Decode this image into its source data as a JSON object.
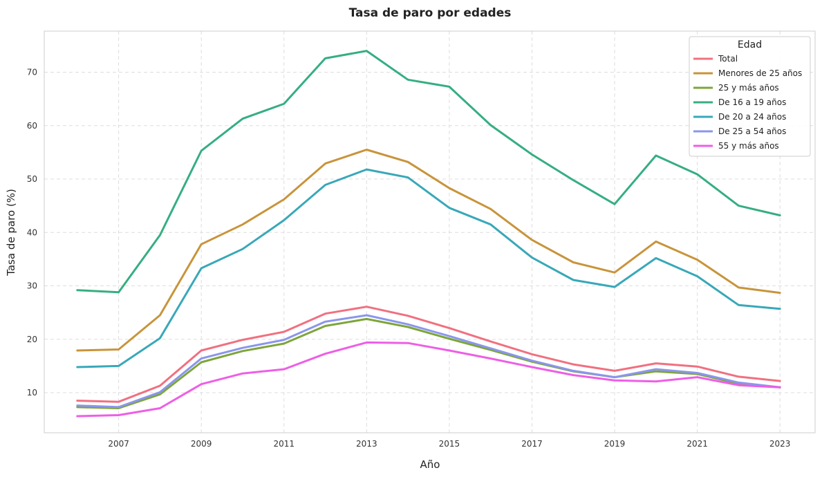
{
  "chart_data": {
    "type": "line",
    "title": "Tasa de paro por edades",
    "xlabel": "Año",
    "ylabel": "Tasa de paro (%)",
    "x": [
      2006,
      2007,
      2008,
      2009,
      2010,
      2011,
      2012,
      2013,
      2014,
      2015,
      2016,
      2017,
      2018,
      2019,
      2020,
      2021,
      2022,
      2023
    ],
    "xticks": [
      2007,
      2009,
      2011,
      2013,
      2015,
      2017,
      2019,
      2021,
      2023
    ],
    "yticks": [
      10,
      20,
      30,
      40,
      50,
      60,
      70
    ],
    "xlim": [
      2005.2,
      2023.85
    ],
    "ylim": [
      2.5,
      77.7
    ],
    "grid": true,
    "legend": {
      "title": "Edad",
      "position": "top-right"
    },
    "series": [
      {
        "name": "Total",
        "color": "#f07080",
        "values": [
          8.5,
          8.3,
          11.3,
          17.9,
          19.9,
          21.4,
          24.8,
          26.1,
          24.4,
          22.1,
          19.6,
          17.2,
          15.3,
          14.1,
          15.5,
          14.9,
          13.0,
          12.2
        ]
      },
      {
        "name": "Menores de 25 años",
        "color": "#c8943a",
        "values": [
          17.9,
          18.1,
          24.5,
          37.8,
          41.5,
          46.2,
          52.9,
          55.5,
          53.2,
          48.3,
          44.4,
          38.6,
          34.4,
          32.5,
          38.3,
          34.9,
          29.7,
          28.7
        ]
      },
      {
        "name": "25 y más años",
        "color": "#7ea53a",
        "values": [
          7.3,
          7.1,
          9.7,
          15.7,
          17.8,
          19.2,
          22.5,
          23.8,
          22.3,
          20.1,
          18.0,
          15.8,
          14.0,
          12.9,
          14.0,
          13.5,
          11.7,
          11.0
        ]
      },
      {
        "name": "De 16 a 19 años",
        "color": "#35ae82",
        "values": [
          29.2,
          28.8,
          39.5,
          55.3,
          61.3,
          64.1,
          72.6,
          74.0,
          68.6,
          67.3,
          60.1,
          54.6,
          49.8,
          45.3,
          54.4,
          50.9,
          45.0,
          43.2
        ]
      },
      {
        "name": "De 20 a 24 años",
        "color": "#38a8b8",
        "values": [
          14.8,
          15.0,
          20.2,
          33.3,
          36.9,
          42.3,
          48.9,
          51.8,
          50.3,
          44.6,
          41.5,
          35.3,
          31.1,
          29.8,
          35.2,
          31.8,
          26.4,
          25.7
        ]
      },
      {
        "name": "De 25 a 54 años",
        "color": "#8a96ec",
        "values": [
          7.6,
          7.3,
          10.1,
          16.4,
          18.4,
          19.9,
          23.3,
          24.5,
          22.8,
          20.6,
          18.3,
          16.0,
          14.1,
          12.9,
          14.4,
          13.7,
          11.9,
          11.0
        ]
      },
      {
        "name": "55 y más años",
        "color": "#ee5ee6",
        "values": [
          5.6,
          5.8,
          7.1,
          11.6,
          13.6,
          14.4,
          17.3,
          19.4,
          19.3,
          17.9,
          16.4,
          14.8,
          13.3,
          12.3,
          12.1,
          12.9,
          11.4,
          11.0
        ]
      }
    ]
  }
}
